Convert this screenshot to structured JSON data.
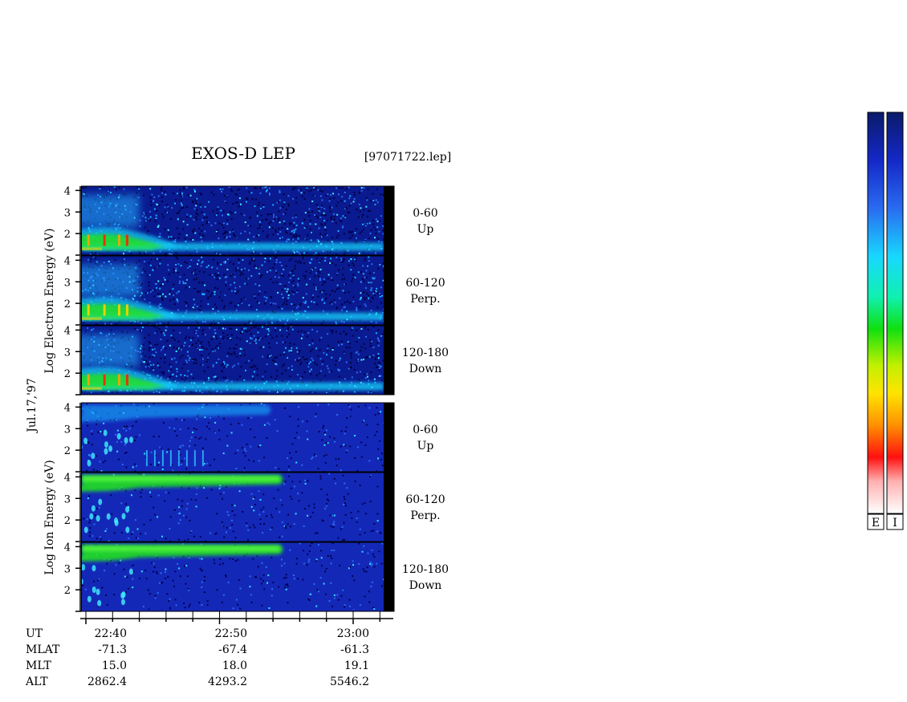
{
  "title": "EXOS-D LEP",
  "file_label": "[97071722.lep]",
  "date_label": "Jul.17,'97",
  "electron_axis_label": "Log Electron Energy (eV)",
  "ion_axis_label": "Log Ion Energy (eV)",
  "panels": [
    {
      "species": "Electron",
      "angle": "0-60",
      "direction": "Up"
    },
    {
      "species": "Electron",
      "angle": "60-120",
      "direction": "Perp."
    },
    {
      "species": "Electron",
      "angle": "120-180",
      "direction": "Down"
    },
    {
      "species": "Ion",
      "angle": "0-60",
      "direction": "Up"
    },
    {
      "species": "Ion",
      "angle": "60-120",
      "direction": "Perp."
    },
    {
      "species": "Ion",
      "angle": "120-180",
      "direction": "Down"
    }
  ],
  "colorbar_labels": [
    "E",
    "I"
  ],
  "chart_data": {
    "type": "heatmap",
    "x_axis": "UT",
    "time_ticks": [
      "22:40",
      "22:50",
      "23:00"
    ],
    "x_range_minutes": [
      22.5,
      36.5
    ],
    "x_tick_minutes": [
      40,
      50,
      60
    ],
    "y_ticks": [
      2,
      3,
      4
    ],
    "y_range": [
      1,
      4.2
    ],
    "ephemeris": [
      {
        "name": "UT",
        "values": [
          "22:40",
          "22:50",
          "23:00"
        ]
      },
      {
        "name": "MLAT",
        "values": [
          "-71.3",
          "-67.4",
          "-61.3"
        ]
      },
      {
        "name": "MLT",
        "values": [
          "15.0",
          "18.0",
          "19.1"
        ]
      },
      {
        "name": "ALT",
        "values": [
          "2862.4",
          "4293.2",
          "5546.2"
        ]
      }
    ],
    "colorscale": [
      "#000060",
      "#0000c8",
      "#0070ff",
      "#00ffff",
      "#00ff00",
      "#ffff00",
      "#ff8000",
      "#ff0000",
      "#ffffff"
    ]
  }
}
